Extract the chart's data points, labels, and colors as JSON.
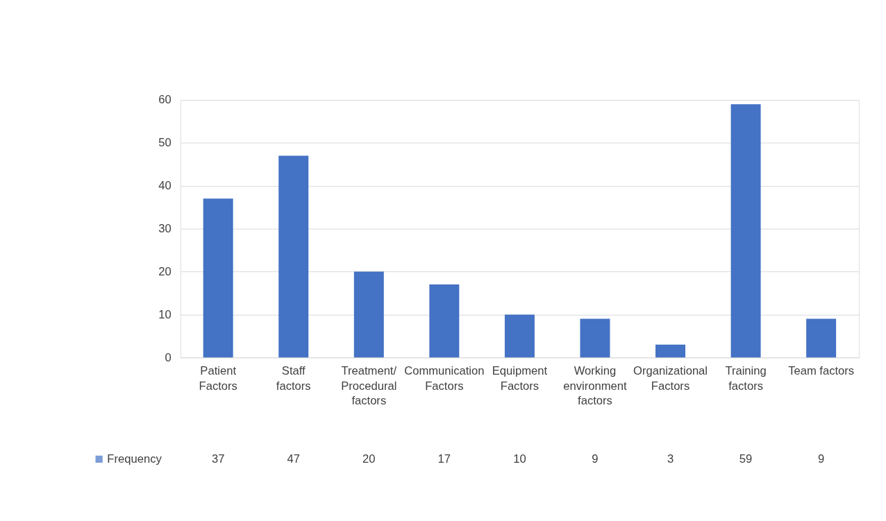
{
  "chart_data": {
    "type": "bar",
    "categories": [
      "Patient Factors",
      "Staff factors",
      "Treatment/Procedural factors",
      "Communication Factors",
      "Equipment Factors",
      "Working environment factors",
      "Organizational Factors",
      "Training factors",
      "Team factors"
    ],
    "series": [
      {
        "name": "Frequency",
        "color": "#4472c4",
        "values": [
          37,
          47,
          20,
          17,
          10,
          9,
          3,
          59,
          9
        ]
      }
    ],
    "ylim": [
      0,
      60
    ],
    "yticks": [
      0,
      10,
      20,
      30,
      40,
      50,
      60
    ],
    "grid": "y",
    "legend": "bottom",
    "data_labels": true
  }
}
